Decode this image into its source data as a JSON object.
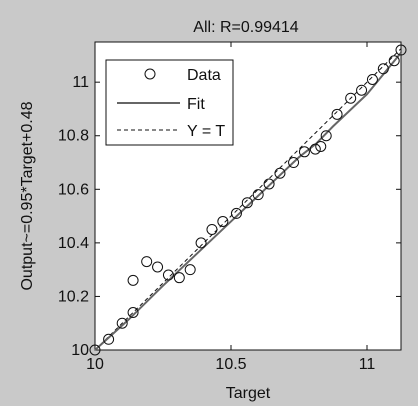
{
  "chart_data": {
    "type": "scatter",
    "title": "All: R=0.99414",
    "xlabel": "Target",
    "ylabel": "Output~=0.95*Target+0.48",
    "xlim": [
      10.0,
      11.125
    ],
    "ylim": [
      10.0,
      11.15
    ],
    "xticks": [
      10,
      10.5,
      11
    ],
    "xtick_labels": [
      "10",
      "10.5",
      "11"
    ],
    "yticks": [
      10,
      10.2,
      10.4,
      10.6,
      10.8,
      11
    ],
    "ytick_labels": [
      "10",
      "10.2",
      "10.4",
      "10.6",
      "10.8",
      "11"
    ],
    "grid": false,
    "legend_position": "top-left",
    "series": [
      {
        "name": "Data",
        "marker": "open-circle",
        "x": [
          10.0,
          10.05,
          10.1,
          10.14,
          10.14,
          10.19,
          10.23,
          10.27,
          10.31,
          10.35,
          10.39,
          10.43,
          10.47,
          10.52,
          10.56,
          10.6,
          10.64,
          10.68,
          10.73,
          10.77,
          10.81,
          10.83,
          10.85,
          10.89,
          10.94,
          10.98,
          11.02,
          11.06,
          11.1,
          11.125
        ],
        "y": [
          10.0,
          10.04,
          10.1,
          10.14,
          10.26,
          10.33,
          10.31,
          10.28,
          10.27,
          10.3,
          10.4,
          10.45,
          10.48,
          10.51,
          10.55,
          10.58,
          10.62,
          10.66,
          10.7,
          10.74,
          10.75,
          10.76,
          10.8,
          10.88,
          10.94,
          10.97,
          11.01,
          11.05,
          11.08,
          11.12
        ]
      },
      {
        "name": "Fit",
        "style": "solid",
        "color": "#666666",
        "x": [
          10.0,
          10.125,
          10.25,
          10.375,
          10.5,
          10.625,
          10.75,
          10.8125,
          10.875,
          11.0,
          11.125
        ],
        "y": [
          10.0,
          10.115,
          10.24,
          10.36,
          10.48,
          10.6,
          10.72,
          10.77,
          10.835,
          10.955,
          11.11
        ]
      },
      {
        "name": "Y = T",
        "style": "dashed",
        "color": "#111111",
        "x": [
          10.0,
          11.125
        ],
        "y": [
          10.0,
          11.125
        ]
      }
    ]
  }
}
